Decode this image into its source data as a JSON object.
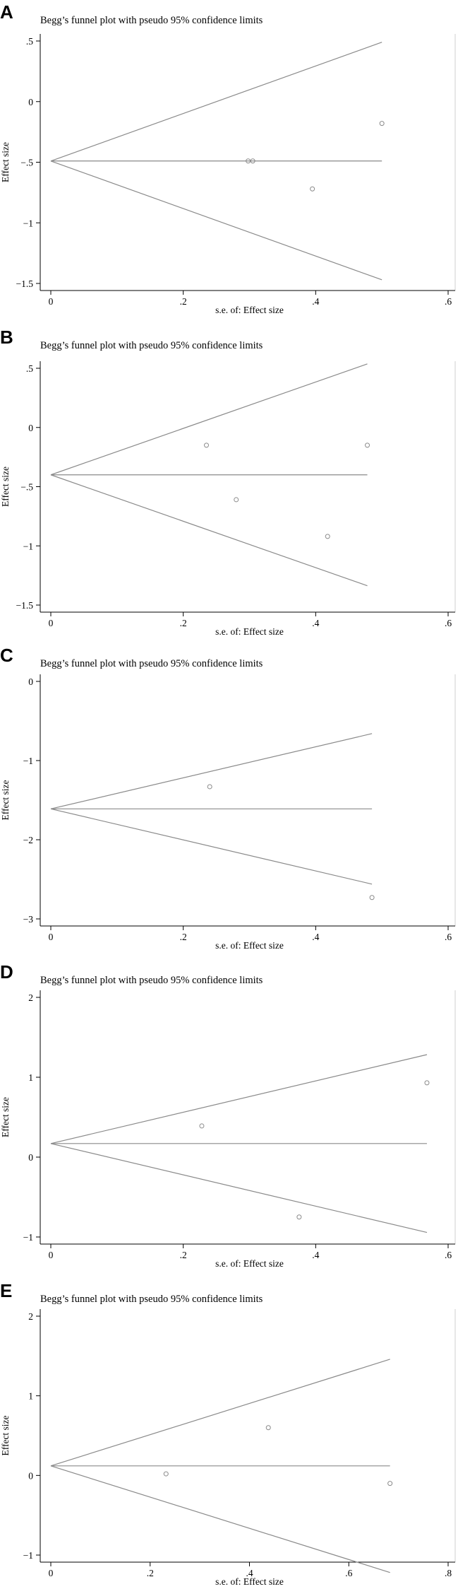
{
  "chart_data": [
    {
      "type": "scatter",
      "panel": "A",
      "title": "Begg’s funnel plot with pseudo 95% confidence limits",
      "xlabel": "s.e. of: Effect size",
      "ylabel": "Effect size",
      "xlim": [
        0,
        0.6
      ],
      "ylim": [
        -1.5,
        0.5
      ],
      "xticks": [
        0,
        0.2,
        0.4,
        0.6
      ],
      "xtick_labels": [
        "0",
        ".2",
        ".4",
        ".6"
      ],
      "yticks": [
        -1.5,
        -1,
        -0.5,
        0,
        0.5
      ],
      "ytick_labels": [
        "−1.5",
        "−1",
        "−.5",
        "0",
        ".5"
      ],
      "pooled_effect": -0.49,
      "funnel_se_max": 0.5,
      "points": [
        {
          "x": 0.298,
          "y": -0.49
        },
        {
          "x": 0.305,
          "y": -0.49
        },
        {
          "x": 0.395,
          "y": -0.72
        },
        {
          "x": 0.5,
          "y": -0.18
        }
      ]
    },
    {
      "type": "scatter",
      "panel": "B",
      "title": "Begg’s funnel plot with pseudo 95% confidence limits",
      "xlabel": "s.e. of: Effect size",
      "ylabel": "Effect size",
      "xlim": [
        0,
        0.6
      ],
      "ylim": [
        -1.5,
        0.5
      ],
      "xticks": [
        0,
        0.2,
        0.4,
        0.6
      ],
      "xtick_labels": [
        "0",
        ".2",
        ".4",
        ".6"
      ],
      "yticks": [
        -1.5,
        -1,
        -0.5,
        0,
        0.5
      ],
      "ytick_labels": [
        "−1.5",
        "−1",
        "−.5",
        "0",
        ".5"
      ],
      "pooled_effect": -0.4,
      "funnel_se_max": 0.478,
      "points": [
        {
          "x": 0.235,
          "y": -0.15
        },
        {
          "x": 0.28,
          "y": -0.61
        },
        {
          "x": 0.418,
          "y": -0.92
        },
        {
          "x": 0.478,
          "y": -0.15
        }
      ]
    },
    {
      "type": "scatter",
      "panel": "C",
      "title": "Begg’s funnel plot with pseudo 95% confidence limits",
      "xlabel": "s.e. of: Effect size",
      "ylabel": "Effect size",
      "xlim": [
        0,
        0.6
      ],
      "ylim": [
        -3,
        0
      ],
      "xticks": [
        0,
        0.2,
        0.4,
        0.6
      ],
      "xtick_labels": [
        "0",
        ".2",
        ".4",
        ".6"
      ],
      "yticks": [
        -3,
        -2,
        -1,
        0
      ],
      "ytick_labels": [
        "−3",
        "−2",
        "−1",
        "0"
      ],
      "pooled_effect": -1.61,
      "funnel_se_max": 0.485,
      "points": [
        {
          "x": 0.24,
          "y": -1.33
        },
        {
          "x": 0.485,
          "y": -2.73
        }
      ]
    },
    {
      "type": "scatter",
      "panel": "D",
      "title": "Begg’s funnel plot with pseudo 95% confidence limits",
      "xlabel": "s.e. of: Effect size",
      "ylabel": "Effect size",
      "xlim": [
        0,
        0.6
      ],
      "ylim": [
        -1,
        2
      ],
      "xticks": [
        0,
        0.2,
        0.4,
        0.6
      ],
      "xtick_labels": [
        "0",
        ".2",
        ".4",
        ".6"
      ],
      "yticks": [
        -1,
        0,
        1,
        2
      ],
      "ytick_labels": [
        "−1",
        "0",
        "1",
        "2"
      ],
      "pooled_effect": 0.17,
      "funnel_se_max": 0.568,
      "points": [
        {
          "x": 0.228,
          "y": 0.39
        },
        {
          "x": 0.375,
          "y": -0.75
        },
        {
          "x": 0.568,
          "y": 0.93
        }
      ]
    },
    {
      "type": "scatter",
      "panel": "E",
      "title": "Begg’s funnel plot with pseudo 95% confidence limits",
      "xlabel": "s.e. of: Effect size",
      "ylabel": "Effect size",
      "xlim": [
        0,
        0.8
      ],
      "ylim": [
        -1,
        2
      ],
      "xticks": [
        0,
        0.2,
        0.4,
        0.6,
        0.8
      ],
      "xtick_labels": [
        "0",
        ".2",
        ".4",
        ".6",
        ".8"
      ],
      "yticks": [
        -1,
        0,
        1,
        2
      ],
      "ytick_labels": [
        "−1",
        "0",
        "1",
        "2"
      ],
      "pooled_effect": 0.12,
      "funnel_se_max": 0.683,
      "points": [
        {
          "x": 0.232,
          "y": 0.02
        },
        {
          "x": 0.438,
          "y": 0.6
        },
        {
          "x": 0.683,
          "y": -0.1
        }
      ]
    }
  ]
}
